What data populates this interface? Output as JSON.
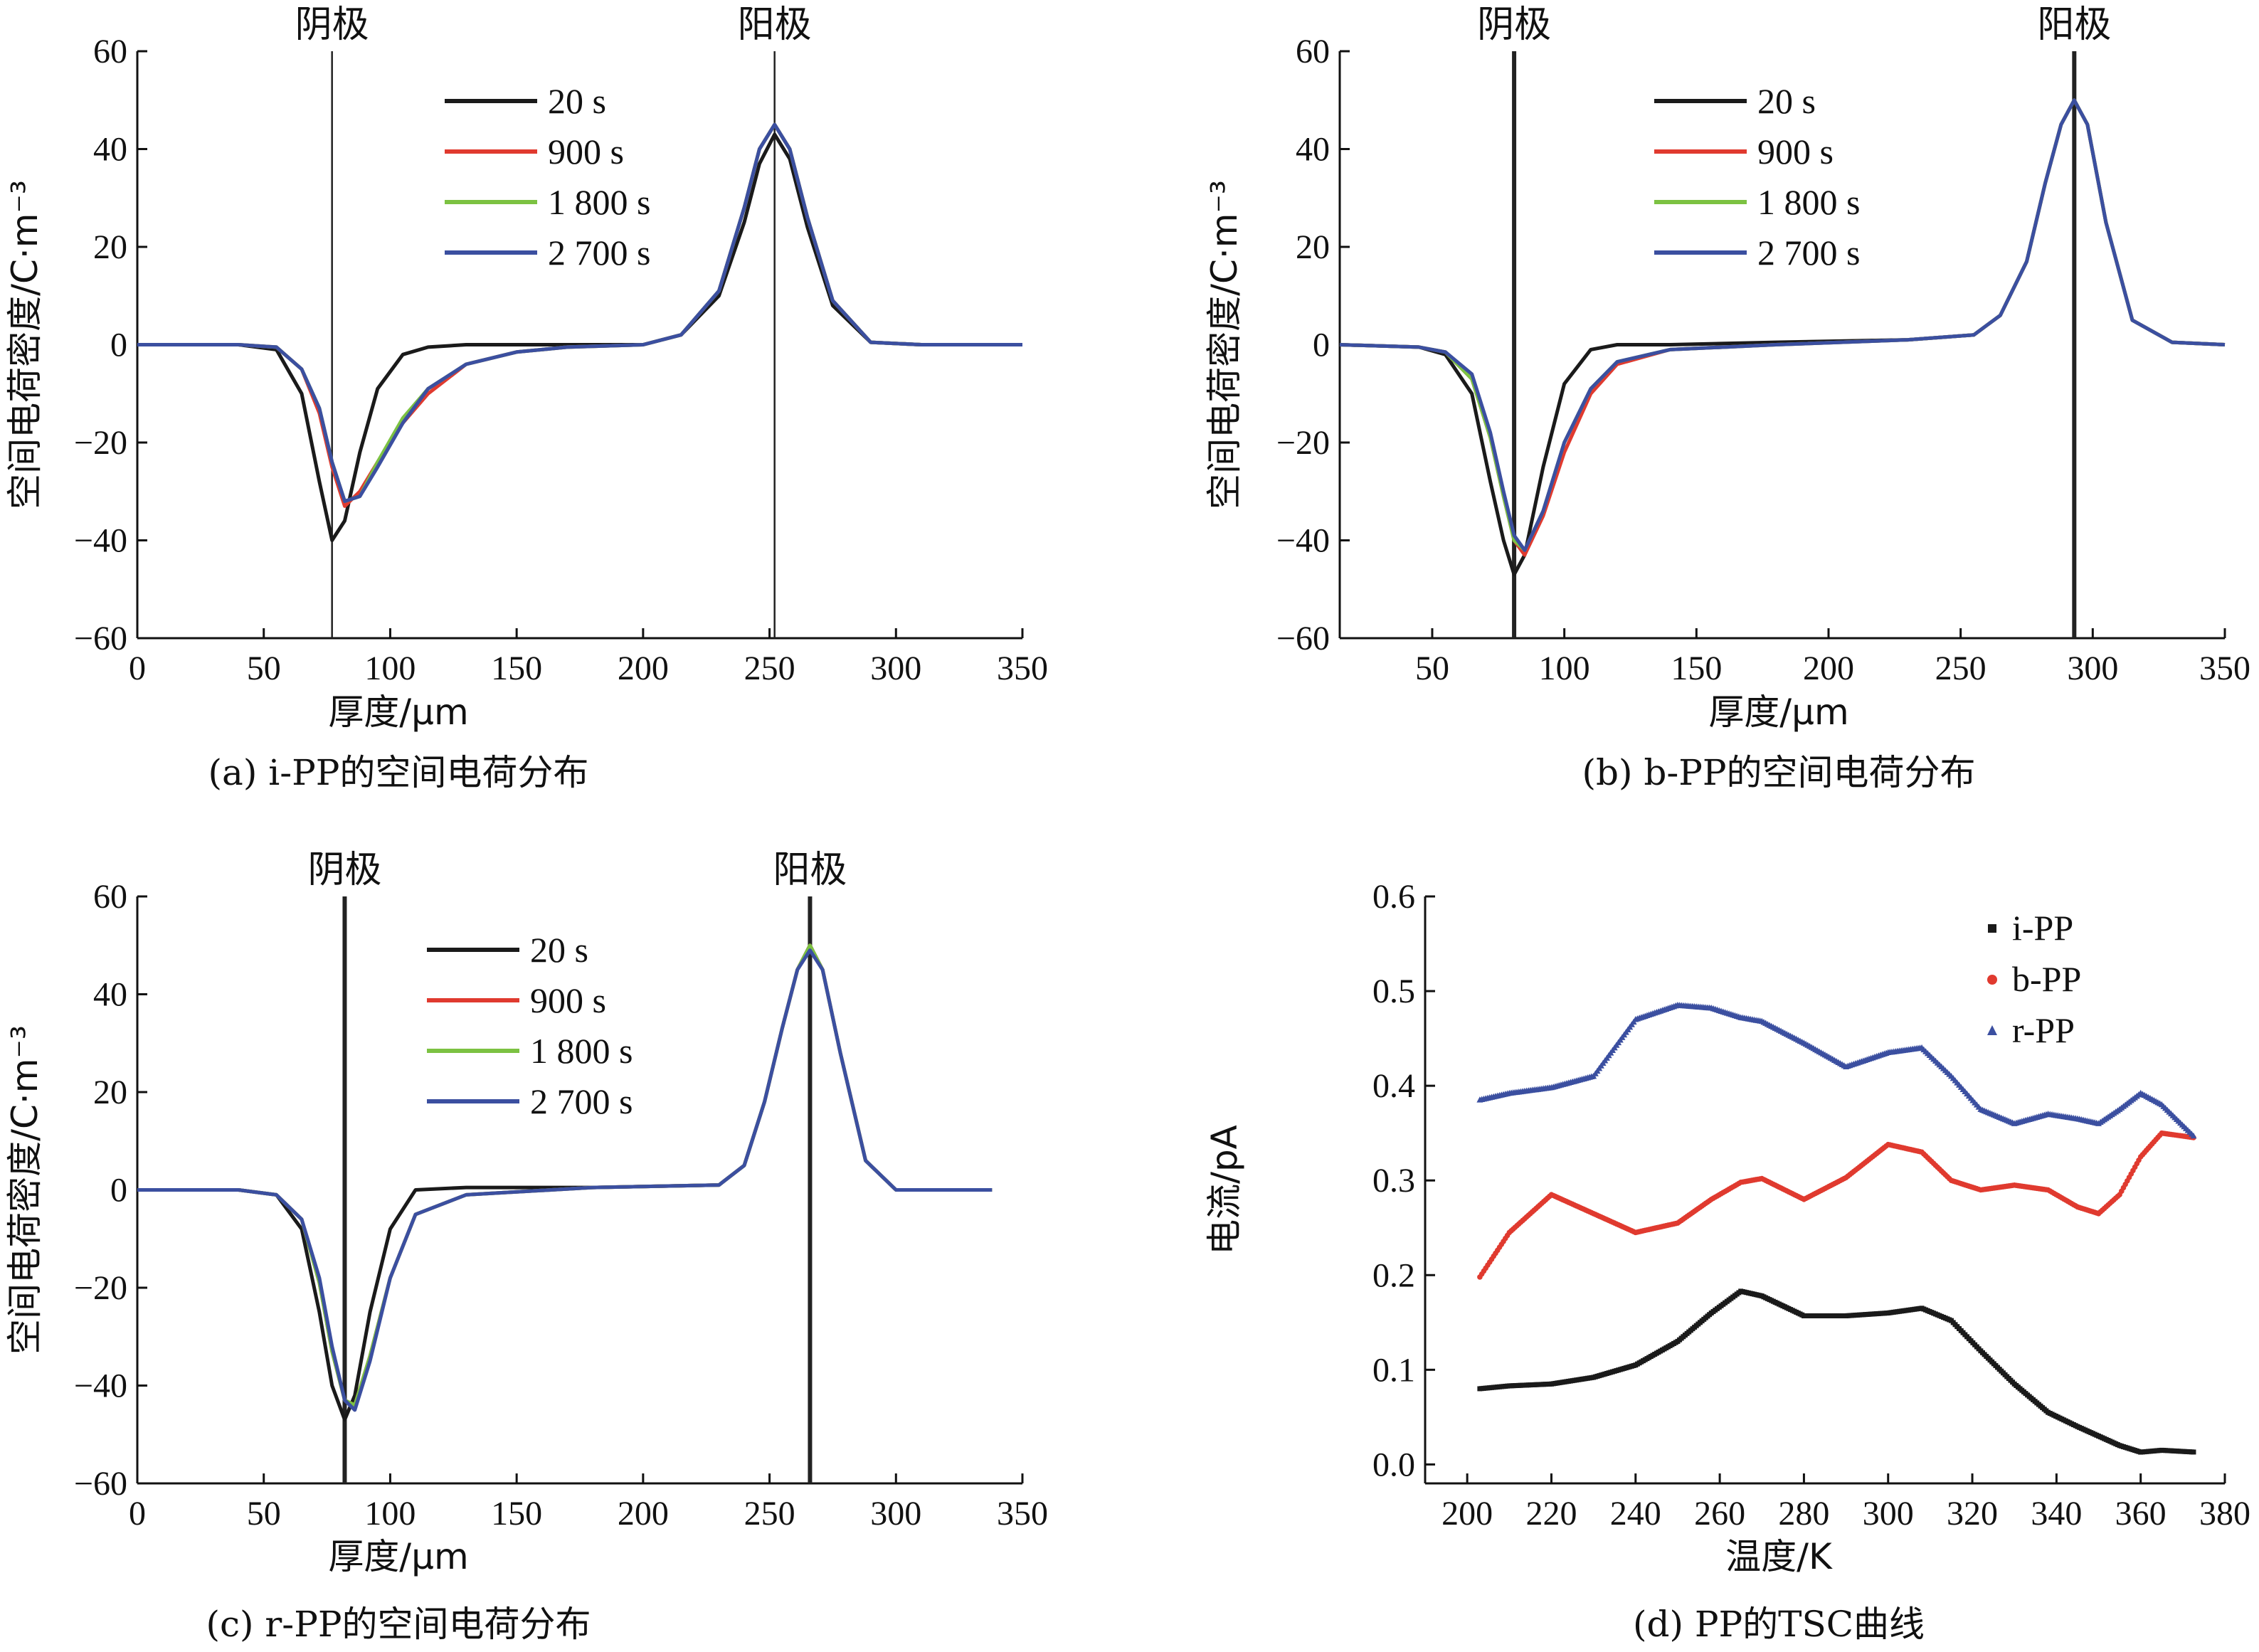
{
  "colors": {
    "t20": "#1a1a1a",
    "t900": "#e03a2f",
    "t1800": "#7cc242",
    "t2700": "#3b4fa0",
    "iPP": "#1a1a1a",
    "bPP": "#e03a2f",
    "rPP": "#3b4fa0"
  },
  "chart_data": [
    {
      "type": "line",
      "caption": "(a) i-PP的空间电荷分布",
      "xlabel": "厚度/μm",
      "ylabel": "空间电荷密度/C·m⁻³",
      "xlim": [
        0,
        350
      ],
      "ylim": [
        -60,
        60
      ],
      "xticks": [
        "0",
        "50",
        "100",
        "150",
        "200",
        "250",
        "300",
        "350"
      ],
      "yticks": [
        "60",
        "40",
        "20",
        "0",
        "−20",
        "−40",
        "−60"
      ],
      "annotations": [
        {
          "text": "阴极",
          "x": 77
        },
        {
          "text": "阳极",
          "x": 252
        }
      ],
      "x": [
        0,
        40,
        55,
        65,
        72,
        77,
        82,
        88,
        95,
        105,
        115,
        130,
        150,
        170,
        200,
        215,
        230,
        240,
        246,
        252,
        258,
        265,
        275,
        290,
        310,
        330,
        350
      ],
      "series": [
        {
          "name": "20 s",
          "values": [
            0,
            0,
            -1,
            -10,
            -28,
            -40,
            -36,
            -22,
            -9,
            -2,
            -0.5,
            0,
            0,
            0,
            0,
            2,
            10,
            25,
            37,
            43,
            38,
            24,
            8,
            0.5,
            0,
            0,
            0
          ]
        },
        {
          "name": "900 s",
          "values": [
            0,
            0,
            -0.5,
            -5,
            -14,
            -25,
            -33,
            -30,
            -24,
            -16,
            -10,
            -4,
            -1.5,
            -0.5,
            0,
            2,
            11,
            28,
            40,
            45,
            40,
            26,
            9,
            0.5,
            0,
            0,
            0
          ]
        },
        {
          "name": "1 800 s",
          "values": [
            0,
            0,
            -0.5,
            -5,
            -13,
            -24,
            -32,
            -31,
            -24,
            -15,
            -9,
            -4,
            -1.5,
            -0.5,
            0,
            2,
            11,
            28,
            40,
            45,
            40,
            26,
            9,
            0.5,
            0,
            0,
            0
          ]
        },
        {
          "name": "2 700 s",
          "values": [
            0,
            0,
            -0.5,
            -5,
            -13,
            -24,
            -32,
            -31,
            -25,
            -16,
            -9,
            -4,
            -1.5,
            -0.5,
            0,
            2,
            11,
            28,
            40,
            45,
            40,
            26,
            9,
            0.5,
            0,
            0,
            0
          ]
        }
      ],
      "legend": "top-center"
    },
    {
      "type": "line",
      "caption": "(b) b-PP的空间电荷分布",
      "xlabel": "厚度/μm",
      "ylabel": "空间电荷密度/C·m⁻³",
      "xlim": [
        15,
        350
      ],
      "ylim": [
        -60,
        60
      ],
      "xticks": [
        "50",
        "100",
        "150",
        "200",
        "250",
        "300",
        "350"
      ],
      "yticks": [
        "60",
        "40",
        "20",
        "0",
        "−20",
        "−40",
        "−60"
      ],
      "annotations": [
        {
          "text": "阴极",
          "x": 81
        },
        {
          "text": "阳极",
          "x": 293
        }
      ],
      "x": [
        15,
        45,
        55,
        65,
        72,
        77,
        81,
        85,
        92,
        100,
        110,
        120,
        140,
        180,
        230,
        255,
        265,
        275,
        282,
        288,
        293,
        298,
        305,
        315,
        330,
        350
      ],
      "series": [
        {
          "name": "20 s",
          "values": [
            0,
            -0.5,
            -2,
            -10,
            -28,
            -40,
            -47,
            -43,
            -25,
            -8,
            -1,
            0,
            0,
            0.5,
            1,
            2,
            6,
            17,
            33,
            45,
            50,
            45,
            25,
            5,
            0.5,
            0
          ]
        },
        {
          "name": "900 s",
          "values": [
            0,
            -0.5,
            -1.5,
            -7,
            -19,
            -31,
            -40,
            -43,
            -35,
            -22,
            -10,
            -4,
            -1,
            0,
            1,
            2,
            6,
            17,
            33,
            45,
            50,
            45,
            25,
            5,
            0.5,
            0
          ]
        },
        {
          "name": "1 800 s",
          "values": [
            0,
            -0.5,
            -1.5,
            -7,
            -19,
            -31,
            -40,
            -42,
            -34,
            -20,
            -9,
            -3.5,
            -1,
            0,
            1,
            2,
            6,
            17,
            33,
            45,
            50,
            45,
            25,
            5,
            0.5,
            0
          ]
        },
        {
          "name": "2 700 s",
          "values": [
            0,
            -0.5,
            -1.5,
            -6,
            -18,
            -30,
            -39,
            -42,
            -34,
            -20,
            -9,
            -3.5,
            -1,
            0,
            1,
            2,
            6,
            17,
            33,
            45,
            50,
            45,
            25,
            5,
            0.5,
            0
          ]
        }
      ],
      "legend": "top-center"
    },
    {
      "type": "line",
      "caption": "(c) r-PP的空间电荷分布",
      "xlabel": "厚度/μm",
      "ylabel": "空间电荷密度/C·m⁻³",
      "xlim": [
        0,
        350
      ],
      "ylim": [
        -60,
        60
      ],
      "xticks": [
        "0",
        "50",
        "100",
        "150",
        "200",
        "250",
        "300",
        "350"
      ],
      "yticks": [
        "60",
        "40",
        "20",
        "0",
        "−20",
        "−40",
        "−60"
      ],
      "annotations": [
        {
          "text": "阴极",
          "x": 82
        },
        {
          "text": "阳极",
          "x": 266
        }
      ],
      "x": [
        0,
        40,
        55,
        65,
        72,
        77,
        82,
        86,
        92,
        100,
        110,
        130,
        180,
        230,
        240,
        248,
        255,
        261,
        266,
        271,
        278,
        288,
        300,
        320,
        338
      ],
      "series": [
        {
          "name": "20 s",
          "values": [
            0,
            0,
            -1,
            -8,
            -25,
            -40,
            -47,
            -42,
            -25,
            -8,
            0,
            0.5,
            0.5,
            1,
            5,
            18,
            33,
            45,
            50,
            45,
            28,
            6,
            0,
            0,
            0
          ]
        },
        {
          "name": "900 s",
          "values": [
            0,
            0,
            -1,
            -6,
            -19,
            -33,
            -43,
            -44,
            -34,
            -18,
            -5,
            -1,
            0.5,
            1,
            5,
            18,
            33,
            45,
            50,
            45,
            28,
            6,
            0,
            0,
            0
          ]
        },
        {
          "name": "1 800 s",
          "values": [
            0,
            0,
            -1,
            -6,
            -19,
            -33,
            -43,
            -44,
            -34,
            -18,
            -5,
            -1,
            0.5,
            1,
            5,
            18,
            33,
            45,
            50,
            45,
            28,
            6,
            0,
            0,
            0
          ]
        },
        {
          "name": "2 700 s",
          "values": [
            0,
            0,
            -1,
            -6,
            -18,
            -32,
            -43,
            -45,
            -35,
            -18,
            -5,
            -1,
            0.5,
            1,
            5,
            18,
            33,
            45,
            49,
            45,
            28,
            6,
            0,
            0,
            0
          ]
        }
      ],
      "legend": "top-center"
    },
    {
      "type": "scatter",
      "caption": "(d) PP的TSC曲线",
      "xlabel": "温度/K",
      "ylabel": "电流/pA",
      "xlim": [
        190,
        380
      ],
      "ylim": [
        -0.02,
        0.6
      ],
      "xticks": [
        "200",
        "220",
        "240",
        "260",
        "280",
        "300",
        "320",
        "340",
        "360",
        "380"
      ],
      "yticks": [
        "0.6",
        "0.5",
        "0.4",
        "0.3",
        "0.2",
        "0.1",
        "0.0"
      ],
      "x": [
        203,
        210,
        220,
        230,
        240,
        250,
        258,
        265,
        270,
        280,
        290,
        300,
        308,
        315,
        322,
        330,
        338,
        345,
        350,
        355,
        360,
        365,
        373
      ],
      "series": [
        {
          "name": "i-PP",
          "marker": "square",
          "values": [
            0.08,
            0.083,
            0.085,
            0.092,
            0.105,
            0.13,
            0.16,
            0.183,
            0.178,
            0.157,
            0.157,
            0.16,
            0.165,
            0.152,
            0.12,
            0.085,
            0.055,
            0.04,
            0.03,
            0.02,
            0.013,
            0.015,
            0.013
          ]
        },
        {
          "name": "b-PP",
          "marker": "circle",
          "values": [
            0.198,
            0.245,
            0.285,
            0.265,
            0.245,
            0.255,
            0.28,
            0.298,
            0.302,
            0.28,
            0.303,
            0.338,
            0.33,
            0.3,
            0.29,
            0.295,
            0.29,
            0.272,
            0.265,
            0.285,
            0.325,
            0.35,
            0.345
          ]
        },
        {
          "name": "r-PP",
          "marker": "triangle",
          "values": [
            0.385,
            0.392,
            0.398,
            0.41,
            0.47,
            0.485,
            0.482,
            0.472,
            0.468,
            0.445,
            0.42,
            0.435,
            0.44,
            0.41,
            0.375,
            0.36,
            0.37,
            0.365,
            0.36,
            0.375,
            0.392,
            0.38,
            0.345
          ]
        }
      ],
      "legend": "top-right"
    }
  ]
}
